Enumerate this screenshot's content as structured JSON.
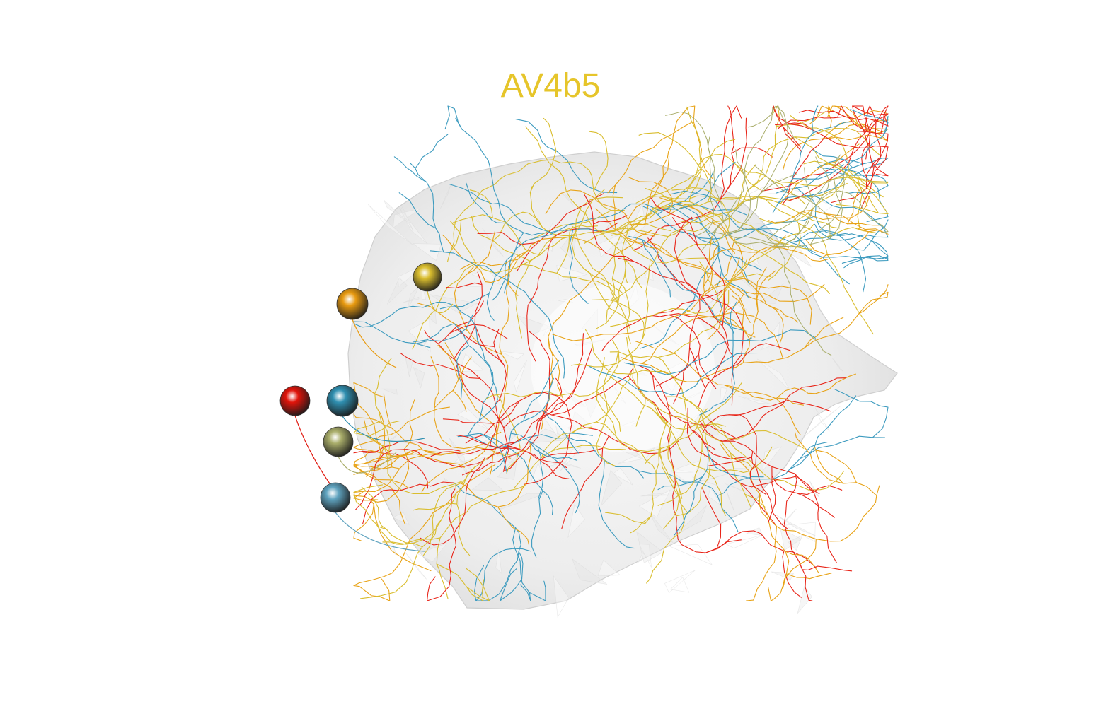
{
  "title": "AV4b5",
  "colors": {
    "title": "#e6c52a",
    "brain_mesh": "#d9d9d9",
    "neurons": [
      "#e8261a",
      "#3d9bbf",
      "#e8a317",
      "#d9bd2e",
      "#a9ad6a",
      "#6fb3cf"
    ]
  },
  "somata": [
    {
      "name": "soma-gold",
      "color": "#d9bd2e"
    },
    {
      "name": "soma-orange",
      "color": "#e89a10"
    },
    {
      "name": "soma-red",
      "color": "#e0140a"
    },
    {
      "name": "soma-teal",
      "color": "#2f8fb0"
    },
    {
      "name": "soma-olive",
      "color": "#a9ad6a"
    },
    {
      "name": "soma-lightblue",
      "color": "#5fa3bf"
    }
  ]
}
